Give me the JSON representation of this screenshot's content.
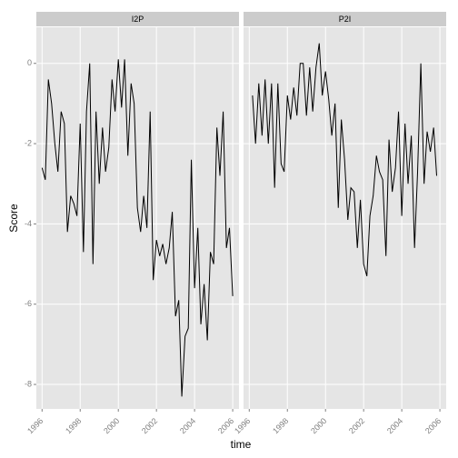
{
  "chart_data": {
    "type": "line",
    "xlabel": "time",
    "ylabel": "Score",
    "color": "#000000",
    "xlim": [
      1995.7,
      2006.33
    ],
    "ylim": [
      -8.61,
      0.9
    ],
    "xticks": [
      1996,
      1998,
      2000,
      2002,
      2004,
      2006
    ],
    "yticks": [
      0,
      -2,
      -4,
      -6,
      -8
    ],
    "grid": true,
    "facets": [
      {
        "title": "I2P",
        "x": [
          1996,
          1996.17,
          1996.33,
          1996.5,
          1996.67,
          1996.83,
          1997,
          1997.17,
          1997.33,
          1997.5,
          1997.67,
          1997.83,
          1998,
          1998.17,
          1998.33,
          1998.5,
          1998.67,
          1998.83,
          1999,
          1999.17,
          1999.33,
          1999.5,
          1999.67,
          1999.83,
          2000,
          2000.17,
          2000.33,
          2000.5,
          2000.67,
          2000.83,
          2001,
          2001.17,
          2001.33,
          2001.5,
          2001.67,
          2001.83,
          2002,
          2002.17,
          2002.33,
          2002.5,
          2002.67,
          2002.83,
          2003,
          2003.17,
          2003.33,
          2003.5,
          2003.67,
          2003.83,
          2004,
          2004.17,
          2004.33,
          2004.5,
          2004.67,
          2004.83,
          2005,
          2005.17,
          2005.33,
          2005.5,
          2005.67,
          2005.83,
          2006
        ],
        "values": [
          -2.6,
          -2.9,
          -0.4,
          -1.0,
          -2.0,
          -2.7,
          -1.2,
          -1.5,
          -4.2,
          -3.3,
          -3.5,
          -3.8,
          -1.5,
          -4.7,
          -1.2,
          0,
          -5.0,
          -1.2,
          -3.0,
          -1.6,
          -2.7,
          -2.1,
          -0.4,
          -1.2,
          0.1,
          -1.1,
          0.1,
          -2.3,
          -0.5,
          -1.0,
          -3.6,
          -4.2,
          -3.3,
          -4.1,
          -1.2,
          -5.4,
          -4.4,
          -4.8,
          -4.5,
          -5.0,
          -4.6,
          -3.7,
          -6.3,
          -5.9,
          -8.3,
          -6.8,
          -6.6,
          -2.4,
          -5.6,
          -4.1,
          -6.5,
          -5.5,
          -6.9,
          -4.7,
          -5.0,
          -1.6,
          -2.8,
          -1.2,
          -4.6,
          -4.1,
          -5.8
        ]
      },
      {
        "title": "P2I",
        "x": [
          1996.17,
          1996.33,
          1996.5,
          1996.67,
          1996.83,
          1997,
          1997.17,
          1997.33,
          1997.5,
          1997.67,
          1997.83,
          1998,
          1998.17,
          1998.33,
          1998.5,
          1998.67,
          1998.83,
          1999,
          1999.17,
          1999.33,
          1999.5,
          1999.67,
          1999.83,
          2000,
          2000.17,
          2000.33,
          2000.5,
          2000.67,
          2000.83,
          2001,
          2001.17,
          2001.33,
          2001.5,
          2001.67,
          2001.83,
          2002,
          2002.17,
          2002.33,
          2002.5,
          2002.67,
          2002.83,
          2003,
          2003.17,
          2003.33,
          2003.5,
          2003.67,
          2003.83,
          2004,
          2004.17,
          2004.33,
          2004.5,
          2004.67,
          2004.83,
          2005,
          2005.17,
          2005.33,
          2005.5,
          2005.67,
          2005.83
        ],
        "values": [
          -0.8,
          -2.0,
          -0.5,
          -1.8,
          -0.4,
          -2.0,
          -0.5,
          -3.1,
          -0.5,
          -2.5,
          -2.7,
          -0.8,
          -1.4,
          -0.6,
          -1.3,
          0,
          0,
          -1.3,
          -0.1,
          -1.2,
          -0.1,
          0.5,
          -0.8,
          -0.2,
          -0.9,
          -1.8,
          -1.0,
          -3.6,
          -1.4,
          -2.4,
          -3.9,
          -3.1,
          -3.2,
          -4.6,
          -3.4,
          -5.0,
          -5.3,
          -3.8,
          -3.3,
          -2.3,
          -2.7,
          -2.9,
          -4.8,
          -1.9,
          -3.2,
          -2.6,
          -1.2,
          -3.8,
          -1.5,
          -3.0,
          -1.8,
          -4.6,
          -2.7,
          0,
          -3.0,
          -1.7,
          -2.2,
          -1.6,
          -2.8
        ]
      }
    ]
  }
}
